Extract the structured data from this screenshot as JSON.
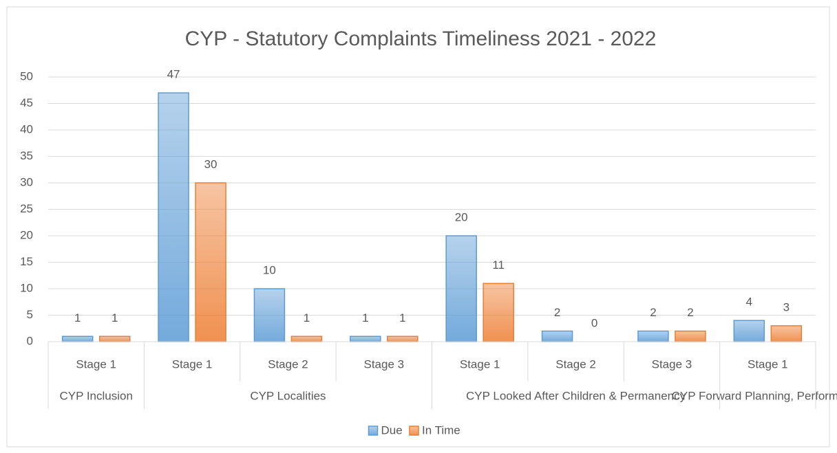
{
  "chart_data": {
    "type": "bar",
    "title": "CYP - Statutory Complaints Timeliness 2021 - 2022",
    "categories": [
      "Stage 1",
      "Stage 1",
      "Stage 2",
      "Stage 3",
      "Stage 1",
      "Stage 2",
      "Stage 3",
      "Stage 1"
    ],
    "category_groups": [
      "CYP Inclusion",
      "CYP Localities",
      "CYP Localities",
      "CYP Localities",
      "CYP Looked After Children & Permanency",
      "CYP Looked After Children & Permanency",
      "CYP Looked After Children & Permanency",
      "CYP Forward Planning, Performance"
    ],
    "series": [
      {
        "name": "Due",
        "color": "#5b9bd5",
        "values": [
          1,
          47,
          10,
          1,
          20,
          2,
          2,
          4
        ]
      },
      {
        "name": "In Time",
        "color": "#ed7d31",
        "values": [
          1,
          30,
          1,
          1,
          11,
          0,
          2,
          3
        ]
      }
    ],
    "ylim": [
      0,
      50
    ],
    "yticks": [
      0,
      5,
      10,
      15,
      20,
      25,
      30,
      35,
      40,
      45,
      50
    ],
    "grid": true,
    "legend": "bottom"
  }
}
